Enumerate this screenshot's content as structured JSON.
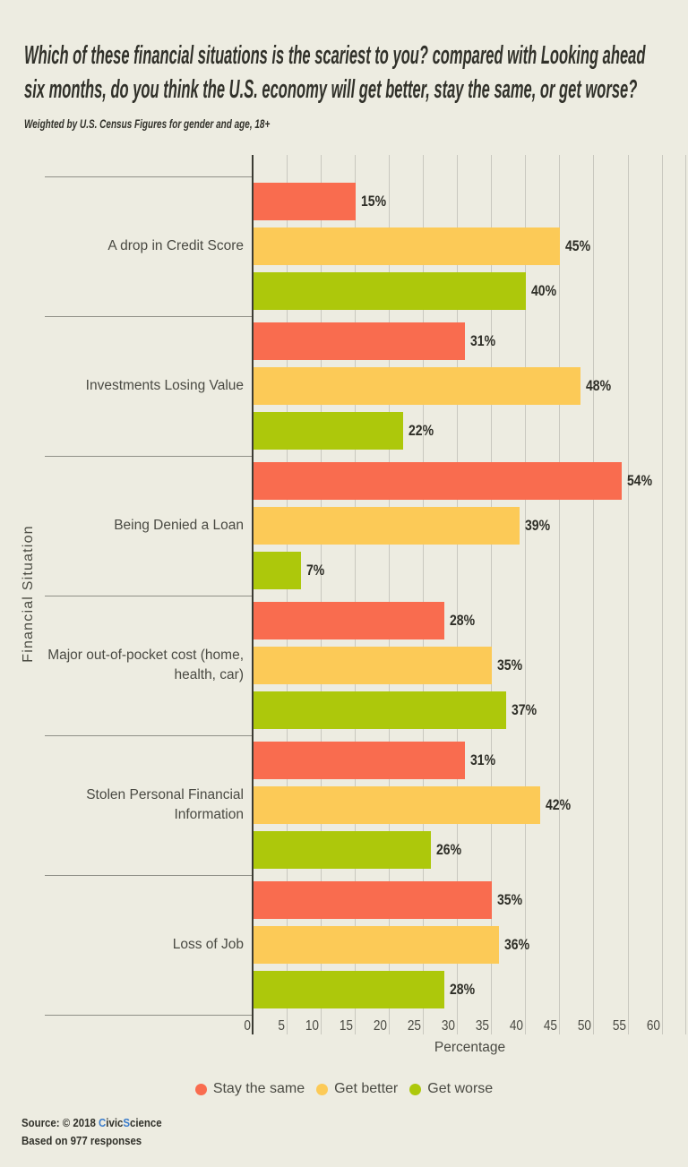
{
  "title_lines": [
    "Which of these financial situations is the scariest to you? compared with Looking ahead",
    "six months, do you think the U.S. economy will get better, stay the same, or get worse?"
  ],
  "subtitle": "Weighted by U.S. Census Figures for gender and age, 18+",
  "chart_data": {
    "type": "bar",
    "orientation": "horizontal",
    "title": "Which of these financial situations is the scariest to you? compared with Looking ahead six months, do you think the U.S. economy will get better, stay the same, or get worse?",
    "subtitle": "Weighted by U.S. Census Figures for gender and age, 18+",
    "categories": [
      "A drop in Credit Score",
      "Investments Losing Value",
      "Being Denied a Loan",
      "Major out-of-pocket cost (home, health, car)",
      "Stolen Personal Financial Information",
      "Loss of Job"
    ],
    "category_lines": [
      [
        "A drop in Credit Score"
      ],
      [
        "Investments Losing Value"
      ],
      [
        "Being Denied a Loan"
      ],
      [
        "Major out-of-pocket cost (home,",
        "health, car)"
      ],
      [
        "Stolen Personal Financial",
        "Information"
      ],
      [
        "Loss of Job"
      ]
    ],
    "series": [
      {
        "name": "Stay the same",
        "color": "#F96C4F",
        "values": [
          15,
          31,
          54,
          28,
          31,
          35
        ]
      },
      {
        "name": "Get better",
        "color": "#FCCA57",
        "values": [
          45,
          48,
          39,
          35,
          42,
          36
        ]
      },
      {
        "name": "Get worse",
        "color": "#ADC80B",
        "values": [
          40,
          22,
          7,
          37,
          26,
          28
        ]
      }
    ],
    "value_suffix": "%",
    "xlabel": "Percentage",
    "ylabel": "Financial Situation",
    "xlim": [
      0,
      64
    ],
    "xticks": [
      0,
      5,
      10,
      15,
      20,
      25,
      30,
      35,
      40,
      45,
      50,
      55,
      60
    ],
    "grid": "vertical",
    "legend_position": "bottom"
  },
  "source": {
    "prefix": "Source: © 2018 ",
    "brand_segments": [
      {
        "text": "C",
        "highlight": true
      },
      {
        "text": "ivic",
        "highlight": false
      },
      {
        "text": "S",
        "highlight": true
      },
      {
        "text": "cience",
        "highlight": false
      }
    ],
    "line2": "Based on 977 responses",
    "highlight_color": "#3A7CCB"
  },
  "colors": {
    "background": "#EDECE1",
    "gridline": "#C9C8BF",
    "axis": "#3C3C34",
    "separator": "#8F8F87",
    "text_dark": "#31312A",
    "text_gray": "#4A4A43"
  }
}
